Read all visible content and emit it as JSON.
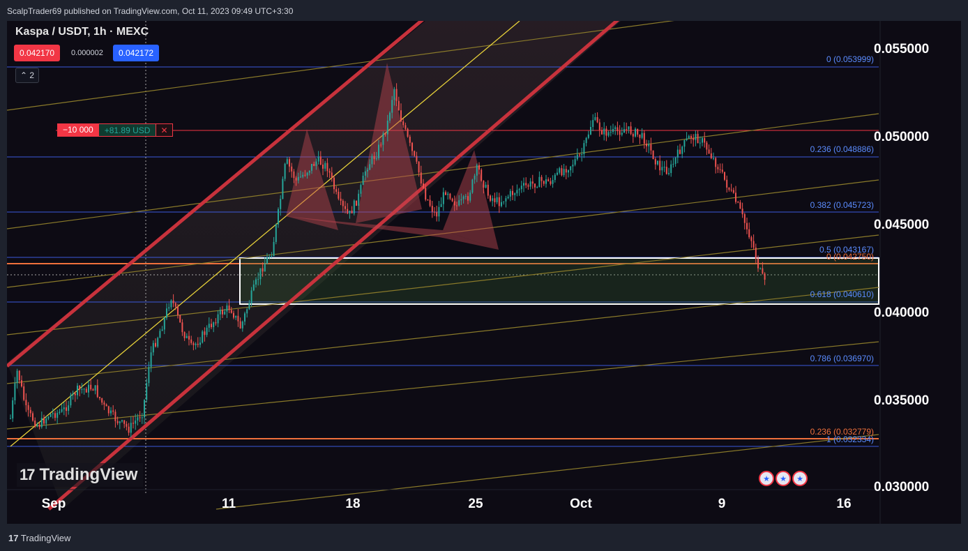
{
  "publish_bar": {
    "text": "ScalpTrader69 published on TradingView.com, Oct 11, 2023 09:49 UTC+3:30"
  },
  "symbol_header": {
    "text": "Kaspa / USDT, 1h · MEXC"
  },
  "quote": {
    "bid": "0.042170",
    "spread": "0.000002",
    "ask": "0.042172",
    "bid_color": "#f23645",
    "ask_color": "#2962ff"
  },
  "collapse_button": {
    "label": "2",
    "icon": "chevron-up-icon"
  },
  "position": {
    "quantity": "−10 000",
    "pnl": "+81.89 USD",
    "close_icon": "close-icon"
  },
  "watermark": {
    "text": "TradingView",
    "logo_icon": "tradingview-logo-icon"
  },
  "footer": {
    "text": "TradingView",
    "logo_icon": "tradingview-logo-icon"
  },
  "price_axis": {
    "labels": [
      "0.055000",
      "0.050000",
      "0.045000",
      "0.040000",
      "0.035000",
      "0.030000"
    ]
  },
  "time_axis": {
    "labels": [
      "Sep",
      "11",
      "18",
      "25",
      "Oct",
      "9",
      "16"
    ]
  },
  "fib_levels": [
    {
      "text": "0 (0.053999)",
      "color": "#5b8cff"
    },
    {
      "text": "0.236 (0.048886)",
      "color": "#5b8cff"
    },
    {
      "text": "0.382 (0.045723)",
      "color": "#5b8cff"
    },
    {
      "text": "0.5 (0.043167)",
      "color": "#5b8cff"
    },
    {
      "text": "0 (0.042750)",
      "color": "#f0703c"
    },
    {
      "text": "0.618 (0.040610)",
      "color": "#5b8cff"
    },
    {
      "text": "0.786 (0.036970)",
      "color": "#5b8cff"
    },
    {
      "text": "0.236 (0.032779)",
      "color": "#f0703c"
    },
    {
      "text": "1 (0.032334)",
      "color": "#5b8cff"
    }
  ],
  "colors": {
    "background": "#0d0b14",
    "channel": "#c8323c",
    "trendline": "#c8a832",
    "fib_blue": "#3c5adc",
    "fib_orange": "#f0703c",
    "candle_up": "#26a69a",
    "candle_down": "#ef5350",
    "zone_border": "#ffffff"
  },
  "events": [
    {
      "icon": "us-flag-icon"
    },
    {
      "icon": "us-flag-icon"
    },
    {
      "icon": "us-flag-icon"
    }
  ]
}
